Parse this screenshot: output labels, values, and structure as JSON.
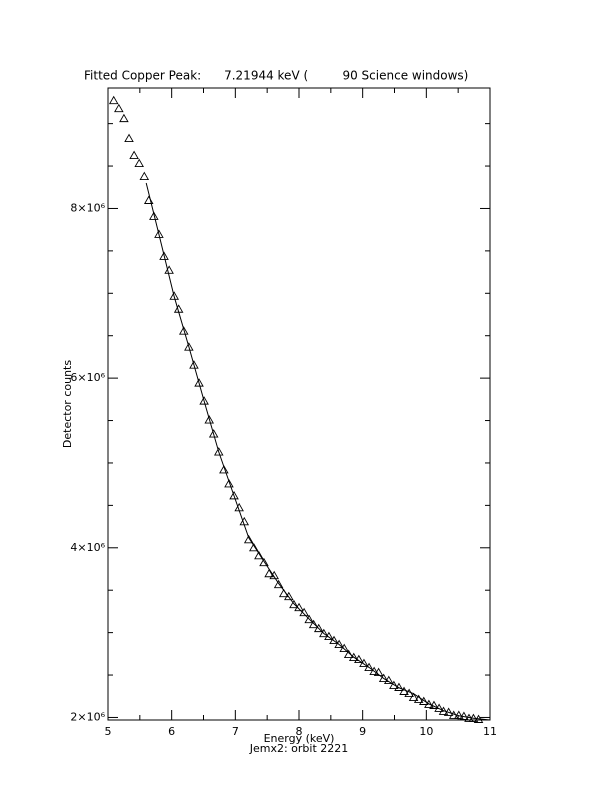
{
  "chart_data": {
    "type": "scatter",
    "title": "Fitted Copper Peak:      7.21944 keV (         90 Science windows)",
    "x_label": "Energy (keV)",
    "subtitle": "Jemx2: orbit 2221",
    "y_label": "Detector counts",
    "xlim": [
      5,
      11
    ],
    "xticks": [
      5,
      6,
      7,
      8,
      9,
      10,
      11
    ],
    "xminorticks": [
      5.5,
      6.5,
      7.5,
      8.5,
      9.5,
      10.5
    ],
    "ylim": [
      1970000,
      9420000
    ],
    "yticks": [
      {
        "value": 2000000,
        "label": "2×10⁶"
      },
      {
        "value": 4000000,
        "label": "4×10⁶"
      },
      {
        "value": 6000000,
        "label": "6×10⁶"
      },
      {
        "value": 8000000,
        "label": "8×10⁶"
      }
    ],
    "yminorticks": [
      2500000,
      3000000,
      3500000,
      4500000,
      5000000,
      5500000,
      6500000,
      7000000,
      7500000,
      8500000,
      9000000
    ],
    "color": "#000000",
    "series": [
      {
        "marker": "triangle",
        "x": [
          5.09,
          5.17,
          5.25,
          5.33,
          5.41,
          5.49,
          5.57,
          5.64,
          5.72,
          5.8,
          5.88,
          5.96,
          6.04,
          6.11,
          6.19,
          6.27,
          6.35,
          6.43,
          6.51,
          6.59,
          6.66,
          6.74,
          6.82,
          6.9,
          6.98,
          7.06,
          7.14,
          7.21,
          7.29,
          7.37,
          7.45,
          7.53,
          7.61,
          7.68,
          7.76,
          7.84,
          7.92,
          8.0,
          8.08,
          8.16,
          8.23,
          8.31,
          8.39,
          8.47,
          8.55,
          8.63,
          8.71,
          8.78,
          8.86,
          8.94,
          9.02,
          9.1,
          9.18,
          9.25,
          9.33,
          9.41,
          9.49,
          9.57,
          9.65,
          9.73,
          9.8,
          9.88,
          9.96,
          10.04,
          10.12,
          10.2,
          10.27,
          10.35,
          10.43,
          10.51,
          10.59,
          10.67,
          10.74,
          10.82
        ],
        "values": [
          9271000,
          9176000,
          9059000,
          8824000,
          8624000,
          8529000,
          8376000,
          8094000,
          7906000,
          7694000,
          7435000,
          7271000,
          6965000,
          6812000,
          6553000,
          6365000,
          6153000,
          5941000,
          5729000,
          5506000,
          5341000,
          5129000,
          4918000,
          4753000,
          4612000,
          4471000,
          4306000,
          4094000,
          4000000,
          3906000,
          3824000,
          3694000,
          3671000,
          3565000,
          3459000,
          3424000,
          3329000,
          3294000,
          3235000,
          3153000,
          3094000,
          3047000,
          2988000,
          2953000,
          2906000,
          2859000,
          2812000,
          2741000,
          2706000,
          2682000,
          2635000,
          2588000,
          2541000,
          2529000,
          2459000,
          2435000,
          2376000,
          2353000,
          2306000,
          2282000,
          2235000,
          2212000,
          2188000,
          2153000,
          2141000,
          2106000,
          2071000,
          2059000,
          2024000,
          2024000,
          2012000,
          1988000,
          1988000,
          1976000
        ]
      },
      {
        "marker": "line",
        "x": [
          5.6,
          5.8,
          6.04,
          6.27,
          6.51,
          6.74,
          6.98,
          7.21,
          7.45,
          7.68,
          7.92,
          8.16,
          8.39,
          8.63,
          8.86,
          9.1,
          9.33,
          9.57,
          9.8,
          10.04,
          10.27,
          10.51,
          10.74,
          11.0
        ],
        "values": [
          8300000,
          7694000,
          6960000,
          6370000,
          5729000,
          5129000,
          4612000,
          4120000,
          3840000,
          3580000,
          3340000,
          3160000,
          2990000,
          2860000,
          2710000,
          2590000,
          2460000,
          2350000,
          2280000,
          2160000,
          2080000,
          2020000,
          1990000,
          1970000
        ]
      }
    ]
  }
}
